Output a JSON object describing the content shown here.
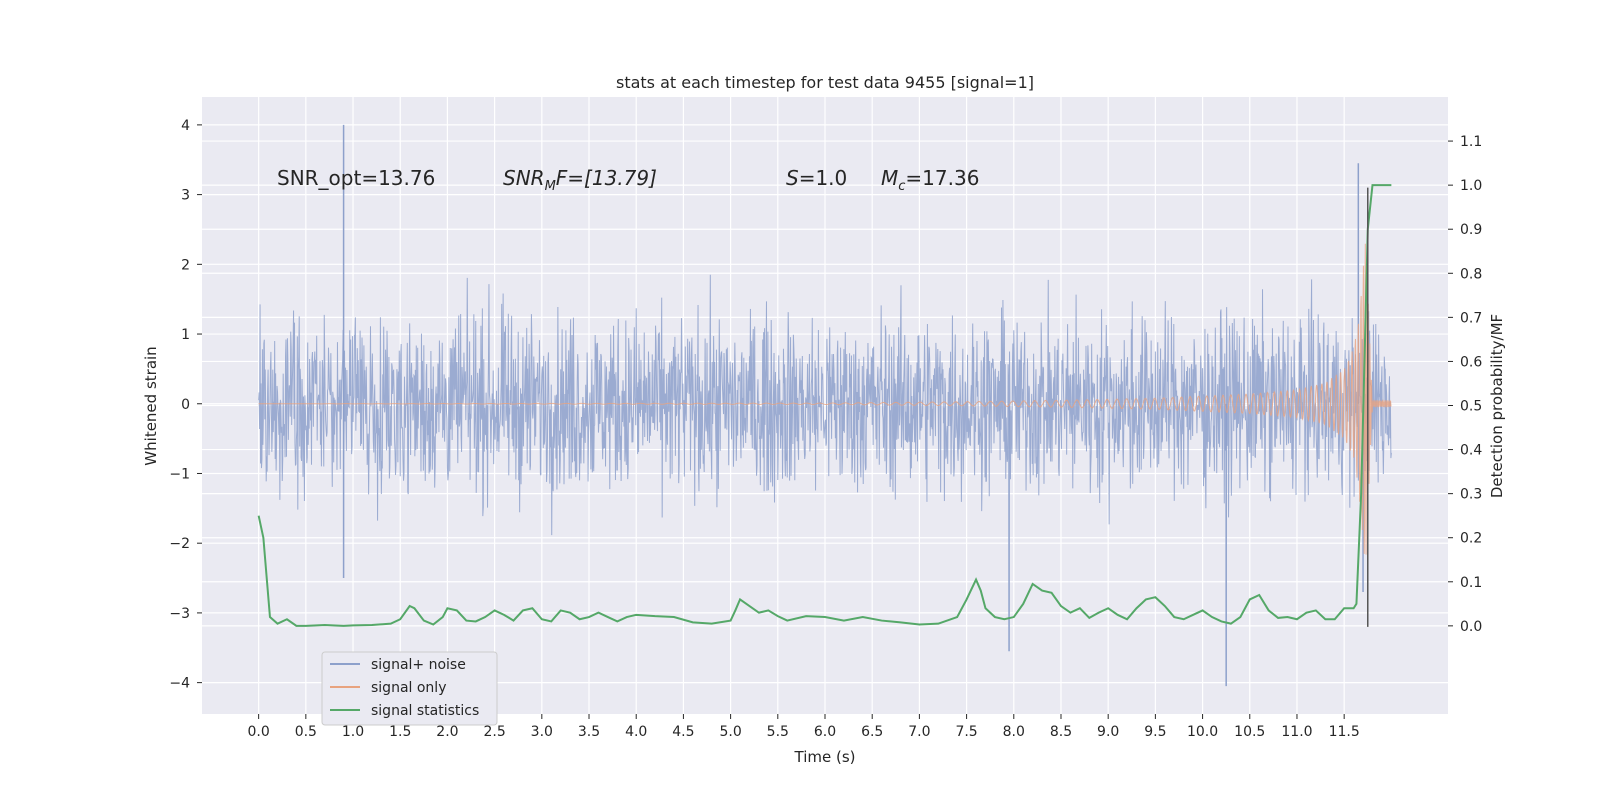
{
  "chart_data": {
    "type": "line",
    "title": "stats at each timestep for test data 9455 [signal=1]",
    "xlabel": "Time (s)",
    "ylabel_left": "Whitened strain",
    "ylabel_right": "Detection probability/MF",
    "xlim": [
      -0.6,
      12.6
    ],
    "ylim_left": [
      -4.45,
      4.4
    ],
    "ylim_right": [
      -0.2,
      1.2
    ],
    "x_ticks": [
      0.0,
      0.5,
      1.0,
      1.5,
      2.0,
      2.5,
      3.0,
      3.5,
      4.0,
      4.5,
      5.0,
      5.5,
      6.0,
      6.5,
      7.0,
      7.5,
      8.0,
      8.5,
      9.0,
      9.5,
      10.0,
      10.5,
      11.0,
      11.5
    ],
    "x_tick_labels": [
      "0.0",
      "0.5",
      "1.0",
      "1.5",
      "2.0",
      "2.5",
      "3.0",
      "3.5",
      "4.0",
      "4.5",
      "5.0",
      "5.5",
      "6.0",
      "6.5",
      "7.0",
      "7.5",
      "8.0",
      "8.5",
      "9.0",
      "9.5",
      "10.0",
      "10.5",
      "11.0",
      "11.5"
    ],
    "y_left_ticks": [
      -4,
      -3,
      -2,
      -1,
      0,
      1,
      2,
      3,
      4
    ],
    "y_left_tick_labels": [
      "−4",
      "−3",
      "−2",
      "−1",
      "0",
      "1",
      "2",
      "3",
      "4"
    ],
    "y_right_ticks": [
      0.0,
      0.1,
      0.2,
      0.3,
      0.4,
      0.5,
      0.6,
      0.7,
      0.8,
      0.9,
      1.0,
      1.1
    ],
    "y_right_tick_labels": [
      "0.0",
      "0.1",
      "0.2",
      "0.3",
      "0.4",
      "0.5",
      "0.6",
      "0.7",
      "0.8",
      "0.9",
      "1.0",
      "1.1"
    ],
    "grid": true,
    "legend_placement": "lower-left",
    "annotations": {
      "snr_opt": "SNR_opt=13.76",
      "snr_mf_main": "SNR",
      "snr_mf_sub": "M",
      "snr_mf_rest": "F=[13.79]",
      "s_main": "S",
      "s_rest": "=1.0",
      "mc_main": "M",
      "mc_sub": "c",
      "mc_rest": "=17.36"
    },
    "noise_envelope": {
      "t": [
        0.0,
        12.0
      ],
      "typical_range": [
        -1.8,
        1.8
      ],
      "extreme_peaks": [
        [
          0.9,
          4.0
        ],
        [
          0.9,
          -2.5
        ],
        [
          7.95,
          -3.55
        ],
        [
          10.25,
          -4.05
        ],
        [
          11.65,
          3.45
        ],
        [
          11.7,
          -2.7
        ]
      ]
    },
    "signal_only": {
      "t": [
        0.0,
        6.0,
        7.5,
        8.5,
        9.5,
        10.5,
        11.0,
        11.3,
        11.5,
        11.6,
        11.65,
        11.7,
        11.72,
        11.8,
        12.0
      ],
      "amplitude": [
        0.0,
        0.01,
        0.03,
        0.05,
        0.08,
        0.14,
        0.2,
        0.3,
        0.5,
        0.8,
        1.2,
        2.0,
        2.6,
        0.05,
        0.05
      ]
    },
    "merger_marker_t": 11.75,
    "series": [
      {
        "name": "signal+ noise",
        "color": "#8da0cb"
      },
      {
        "name": "signal only",
        "color": "#e8a37f"
      },
      {
        "name": "signal statistics",
        "color": "#55a868",
        "t": [
          0.0,
          0.05,
          0.12,
          0.2,
          0.3,
          0.4,
          0.5,
          0.7,
          0.9,
          1.0,
          1.2,
          1.4,
          1.5,
          1.6,
          1.65,
          1.75,
          1.85,
          1.95,
          2.0,
          2.1,
          2.2,
          2.3,
          2.4,
          2.5,
          2.6,
          2.7,
          2.8,
          2.9,
          3.0,
          3.1,
          3.2,
          3.3,
          3.4,
          3.5,
          3.6,
          3.7,
          3.8,
          3.9,
          4.0,
          4.2,
          4.4,
          4.6,
          4.8,
          5.0,
          5.05,
          5.1,
          5.2,
          5.3,
          5.4,
          5.5,
          5.6,
          5.8,
          6.0,
          6.2,
          6.4,
          6.6,
          6.8,
          7.0,
          7.2,
          7.4,
          7.5,
          7.6,
          7.65,
          7.7,
          7.8,
          7.9,
          8.0,
          8.1,
          8.2,
          8.3,
          8.4,
          8.5,
          8.6,
          8.7,
          8.8,
          8.9,
          9.0,
          9.1,
          9.2,
          9.3,
          9.4,
          9.5,
          9.6,
          9.7,
          9.8,
          9.9,
          10.0,
          10.1,
          10.2,
          10.3,
          10.4,
          10.5,
          10.6,
          10.7,
          10.8,
          10.9,
          11.0,
          11.1,
          11.2,
          11.3,
          11.4,
          11.5,
          11.6,
          11.63,
          11.68,
          11.75,
          11.8,
          11.85,
          11.9,
          12.0
        ],
        "values": [
          0.25,
          0.2,
          0.02,
          0.005,
          0.015,
          0.0,
          0.0,
          0.002,
          0.0,
          0.001,
          0.002,
          0.005,
          0.015,
          0.045,
          0.04,
          0.012,
          0.003,
          0.02,
          0.04,
          0.035,
          0.012,
          0.01,
          0.02,
          0.035,
          0.025,
          0.012,
          0.035,
          0.04,
          0.015,
          0.01,
          0.035,
          0.03,
          0.015,
          0.02,
          0.03,
          0.02,
          0.01,
          0.02,
          0.025,
          0.022,
          0.02,
          0.008,
          0.005,
          0.012,
          0.035,
          0.06,
          0.045,
          0.03,
          0.035,
          0.022,
          0.012,
          0.022,
          0.02,
          0.012,
          0.02,
          0.012,
          0.008,
          0.003,
          0.005,
          0.02,
          0.06,
          0.105,
          0.08,
          0.04,
          0.02,
          0.015,
          0.02,
          0.05,
          0.095,
          0.08,
          0.075,
          0.045,
          0.03,
          0.04,
          0.018,
          0.03,
          0.04,
          0.025,
          0.015,
          0.04,
          0.06,
          0.065,
          0.045,
          0.02,
          0.015,
          0.025,
          0.035,
          0.02,
          0.01,
          0.005,
          0.02,
          0.06,
          0.07,
          0.035,
          0.018,
          0.02,
          0.015,
          0.03,
          0.035,
          0.015,
          0.015,
          0.04,
          0.04,
          0.05,
          0.3,
          0.9,
          1.0,
          1.0,
          1.0,
          1.0
        ]
      }
    ]
  }
}
